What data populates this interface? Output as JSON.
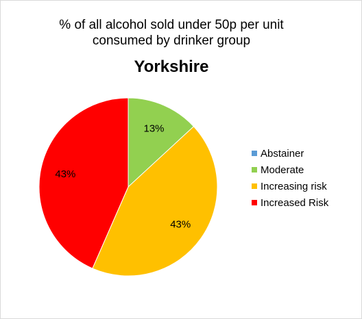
{
  "chart_data": {
    "type": "pie",
    "title_lines": [
      "% of all alcohol sold under 50p per unit",
      "consumed   by drinker group"
    ],
    "subtitle": "Yorkshire",
    "categories": [
      "Abstainer",
      "Moderate",
      "Increasing risk",
      "Increased Risk"
    ],
    "values": [
      0,
      13,
      43,
      43
    ],
    "data_labels": [
      "",
      "13%",
      "43%",
      "43%"
    ],
    "colors": [
      "#5b9bd5",
      "#92d050",
      "#ffc000",
      "#ff0000"
    ],
    "legend_position": "right"
  }
}
